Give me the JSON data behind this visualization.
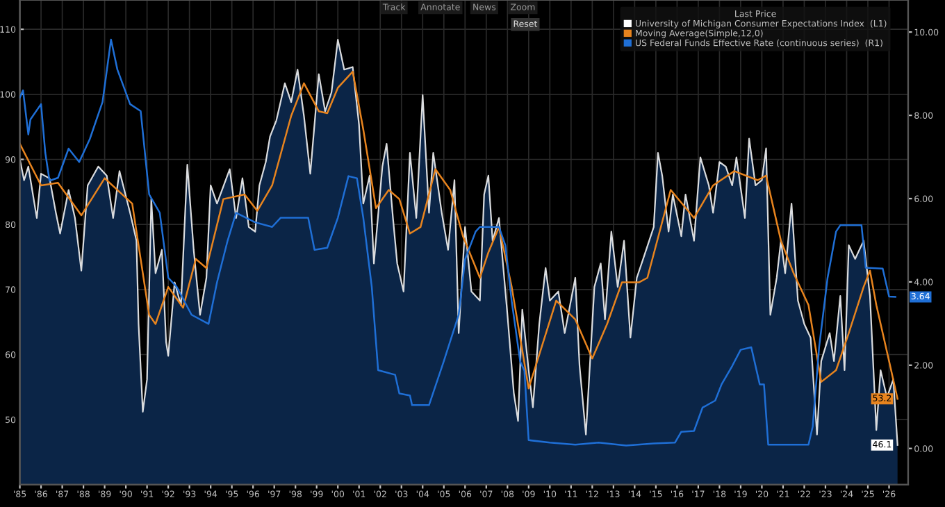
{
  "chart_data": {
    "type": "line",
    "legend_title": "Last Price",
    "annotations": [
      "Track",
      "Annotate",
      "News",
      "Zoom",
      "Reset"
    ],
    "xlim": [
      1985.0,
      2026.9
    ],
    "xticks": [
      {
        "value": 1985,
        "label": "'85"
      },
      {
        "value": 1986,
        "label": "'86"
      },
      {
        "value": 1987,
        "label": "'87"
      },
      {
        "value": 1988,
        "label": "'88"
      },
      {
        "value": 1989,
        "label": "'89"
      },
      {
        "value": 1990,
        "label": "'90"
      },
      {
        "value": 1991,
        "label": "'91"
      },
      {
        "value": 1992,
        "label": "'92"
      },
      {
        "value": 1993,
        "label": "'93"
      },
      {
        "value": 1994,
        "label": "'94"
      },
      {
        "value": 1995,
        "label": "'95"
      },
      {
        "value": 1996,
        "label": "'96"
      },
      {
        "value": 1997,
        "label": "'97"
      },
      {
        "value": 1998,
        "label": "'98"
      },
      {
        "value": 1999,
        "label": "'99"
      },
      {
        "value": 2000,
        "label": "'00"
      },
      {
        "value": 2001,
        "label": "'01"
      },
      {
        "value": 2002,
        "label": "'02"
      },
      {
        "value": 2003,
        "label": "'03"
      },
      {
        "value": 2004,
        "label": "'04"
      },
      {
        "value": 2005,
        "label": "'05"
      },
      {
        "value": 2006,
        "label": "'06"
      },
      {
        "value": 2007,
        "label": "'07"
      },
      {
        "value": 2008,
        "label": "'08"
      },
      {
        "value": 2009,
        "label": "'09"
      },
      {
        "value": 2010,
        "label": "'10"
      },
      {
        "value": 2011,
        "label": "'11"
      },
      {
        "value": 2012,
        "label": "'12"
      },
      {
        "value": 2013,
        "label": "'13"
      },
      {
        "value": 2014,
        "label": "'14"
      },
      {
        "value": 2015,
        "label": "'15"
      },
      {
        "value": 2016,
        "label": "'16"
      },
      {
        "value": 2017,
        "label": "'17"
      },
      {
        "value": 2018,
        "label": "'18"
      },
      {
        "value": 2019,
        "label": "'19"
      },
      {
        "value": 2020,
        "label": "'20"
      },
      {
        "value": 2021,
        "label": "'21"
      },
      {
        "value": 2022,
        "label": "'22"
      },
      {
        "value": 2023,
        "label": "'23"
      },
      {
        "value": 2024,
        "label": "'24"
      },
      {
        "value": 2025,
        "label": "'25"
      },
      {
        "value": 2026,
        "label": "'26"
      }
    ],
    "ylim": [
      40,
      114.5
    ],
    "yticks": [
      50,
      60,
      70,
      80,
      90,
      100,
      110
    ],
    "y2lim": [
      -0.87,
      10.77
    ],
    "y2ticks": [
      {
        "value": 0,
        "label": "0.00"
      },
      {
        "value": 2,
        "label": "2.00"
      },
      {
        "value": 4,
        "label": "4.00"
      },
      {
        "value": 6,
        "label": "6.00"
      },
      {
        "value": 8,
        "label": "8.00"
      },
      {
        "value": 10,
        "label": "10.00"
      }
    ],
    "grid": true,
    "legend": "top right",
    "series": [
      {
        "name": "University of Michigan Consumer Expectations Index  (L1)",
        "type": "area",
        "color": "#ffffff",
        "x": [
          1985.0,
          1985.2,
          1985.4,
          1985.8,
          1986.0,
          1986.4,
          1986.7,
          1986.9,
          1987.3,
          1987.6,
          1987.9,
          1988.2,
          1988.7,
          1989.1,
          1989.4,
          1989.7,
          1990.2,
          1990.5,
          1990.6,
          1990.8,
          1991.0,
          1991.2,
          1991.4,
          1991.7,
          1991.9,
          1992.0,
          1992.3,
          1992.6,
          1992.9,
          1993.2,
          1993.5,
          1993.8,
          1994.0,
          1994.3,
          1994.9,
          1995.2,
          1995.5,
          1995.8,
          1996.1,
          1996.3,
          1996.6,
          1996.8,
          1997.1,
          1997.5,
          1997.8,
          1998.1,
          1998.4,
          1998.7,
          1999.1,
          1999.4,
          1999.7,
          2000.0,
          2000.3,
          2000.7,
          2001.0,
          2001.2,
          2001.5,
          2001.7,
          2002.1,
          2002.3,
          2002.6,
          2002.8,
          2003.1,
          2003.4,
          2003.7,
          2004.0,
          2004.3,
          2004.5,
          2004.9,
          2005.2,
          2005.5,
          2005.7,
          2006.0,
          2006.3,
          2006.7,
          2006.9,
          2007.1,
          2007.3,
          2007.6,
          2008.0,
          2008.3,
          2008.5,
          2008.7,
          2009.0,
          2009.2,
          2009.5,
          2009.8,
          2010.0,
          2010.4,
          2010.7,
          2011.2,
          2011.4,
          2011.7,
          2012.1,
          2012.4,
          2012.6,
          2012.9,
          2013.2,
          2013.5,
          2013.8,
          2014.1,
          2014.4,
          2014.9,
          2015.1,
          2015.3,
          2015.6,
          2015.8,
          2016.2,
          2016.4,
          2016.8,
          2017.1,
          2017.5,
          2017.7,
          2018.0,
          2018.3,
          2018.6,
          2018.8,
          2019.2,
          2019.4,
          2019.7,
          2020.0,
          2020.2,
          2020.4,
          2020.7,
          2020.9,
          2021.1,
          2021.4,
          2021.7,
          2022.0,
          2022.3,
          2022.6,
          2022.8,
          2023.2,
          2023.4,
          2023.7,
          2023.9,
          2024.1,
          2024.4,
          2024.8,
          2025.1,
          2025.4,
          2025.6,
          2025.9,
          2026.2,
          2026.4
        ],
        "values": [
          90,
          86.8,
          88.9,
          81,
          87.8,
          87.1,
          81.8,
          78.6,
          85.3,
          81,
          72.9,
          86,
          88.9,
          87.5,
          81,
          88.2,
          81.8,
          77.5,
          64.7,
          51.2,
          56.2,
          83.9,
          72.5,
          76.1,
          61.9,
          59.8,
          71.1,
          67.6,
          89.2,
          76.1,
          66.1,
          71.8,
          86,
          83.2,
          88.5,
          81,
          87.1,
          79.6,
          78.9,
          86,
          89.6,
          93.5,
          96,
          101.7,
          98.8,
          103.8,
          96.7,
          87.8,
          103.1,
          97.4,
          100.3,
          108.4,
          103.8,
          104.2,
          95.3,
          83.2,
          87.5,
          74,
          88.9,
          92.4,
          81,
          74,
          69.7,
          91,
          81,
          99.9,
          81.8,
          91,
          81.8,
          76.1,
          86.8,
          63.3,
          79.6,
          69.7,
          68.3,
          84.6,
          87.5,
          77.5,
          81,
          66.1,
          54.1,
          49.8,
          66.9,
          57.6,
          51.9,
          64.7,
          73.3,
          68.3,
          69.7,
          63.3,
          71.8,
          58.3,
          47.7,
          70.4,
          74,
          65.4,
          78.9,
          70.4,
          77.5,
          62.6,
          71.8,
          74.7,
          79.6,
          91,
          87.5,
          78.9,
          84.6,
          78.2,
          84.6,
          77.5,
          90.3,
          86,
          81.8,
          89.6,
          88.9,
          86,
          90.3,
          81,
          93.2,
          86,
          86.8,
          91.7,
          66.1,
          71.8,
          77.5,
          72.5,
          83.2,
          68.3,
          64.7,
          62.6,
          47.7,
          59,
          63.3,
          59,
          69,
          57.6,
          76.8,
          74.7,
          77.5,
          69,
          48.4,
          57.6,
          53.4,
          56.2,
          46.1
        ],
        "value_labels": [
          null,
          null,
          null,
          null,
          null,
          null,
          null,
          null,
          null,
          null,
          null,
          null,
          null,
          null,
          null,
          null,
          null,
          null,
          null,
          null,
          null,
          null,
          null,
          null,
          null,
          null,
          null,
          null,
          null,
          null,
          null,
          null,
          null,
          null,
          null,
          null,
          null,
          null,
          null,
          null,
          null,
          null,
          null,
          null,
          null,
          null,
          null,
          null,
          null,
          null,
          null,
          null,
          null,
          null,
          null,
          null,
          null,
          null,
          null,
          null,
          null,
          null,
          null,
          null,
          null,
          null,
          null,
          null,
          null,
          null,
          null,
          null,
          null,
          null,
          null,
          null,
          null,
          null,
          null,
          null,
          null,
          null,
          null,
          null,
          null,
          null,
          null,
          null,
          null,
          null,
          null,
          null,
          null,
          null,
          null,
          null,
          null,
          null,
          null,
          null,
          null,
          null,
          null,
          null,
          null,
          null,
          null,
          null,
          null,
          null,
          null,
          null,
          null,
          null,
          null,
          null,
          null,
          null,
          null,
          null,
          null,
          null,
          null,
          null,
          null,
          null,
          null,
          null,
          null,
          null,
          null,
          null,
          null,
          null,
          null,
          null,
          null,
          null,
          null,
          null,
          null,
          null,
          null,
          null,
          "46.1"
        ]
      },
      {
        "name": "Moving Average(Simple,12,0)",
        "color": "#e8841e",
        "x": [
          1985.0,
          1986.0,
          1986.8,
          1987.9,
          1989.0,
          1990.3,
          1991.1,
          1991.4,
          1992.0,
          1992.7,
          1993.3,
          1993.8,
          1994.6,
          1995.6,
          1996.2,
          1996.9,
          1997.8,
          1998.4,
          1999.1,
          1999.5,
          2000.0,
          2000.7,
          2001.2,
          2001.8,
          2002.4,
          2002.9,
          2003.4,
          2003.9,
          2004.6,
          2005.3,
          2005.9,
          2006.7,
          2007.1,
          2007.6,
          2008.2,
          2009.0,
          2010.3,
          2011.2,
          2012.0,
          2012.7,
          2013.4,
          2014.2,
          2014.6,
          2015.7,
          2016.8,
          2017.7,
          2018.7,
          2019.8,
          2020.2,
          2020.9,
          2021.5,
          2022.2,
          2022.8,
          2023.5,
          2024.1,
          2024.8,
          2025.1,
          2025.4,
          2026.0,
          2026.4
        ],
        "values": [
          92.4,
          86,
          86.4,
          81.4,
          87.1,
          83.2,
          66.1,
          64.7,
          70.4,
          67.2,
          74.7,
          73.3,
          83.9,
          84.6,
          82.1,
          86,
          96.7,
          101.7,
          97.4,
          97.1,
          101,
          103.5,
          94.6,
          82.5,
          85.3,
          83.9,
          78.6,
          79.6,
          88.5,
          85.3,
          78.2,
          71.8,
          75.7,
          79.6,
          70.4,
          54.8,
          68.3,
          65.4,
          59.4,
          64.7,
          71.1,
          71.1,
          71.8,
          85.3,
          81,
          86,
          88.2,
          86.8,
          87.5,
          77.5,
          72.5,
          67.6,
          55.8,
          57.6,
          63.3,
          70.4,
          72.9,
          67.6,
          59,
          53.2
        ],
        "value_labels": [
          null,
          null,
          null,
          null,
          null,
          null,
          null,
          null,
          null,
          null,
          null,
          null,
          null,
          null,
          null,
          null,
          null,
          null,
          null,
          null,
          null,
          null,
          null,
          null,
          null,
          null,
          null,
          null,
          null,
          null,
          null,
          null,
          null,
          null,
          null,
          null,
          null,
          null,
          null,
          null,
          null,
          null,
          null,
          null,
          null,
          null,
          null,
          null,
          null,
          null,
          null,
          null,
          null,
          null,
          null,
          null,
          null,
          null,
          null,
          "53.2"
        ]
      },
      {
        "name": "US Federal Funds Effective Rate (continuous series)  (R1)",
        "axis": "y2",
        "color": "#1f6fd6",
        "x": [
          1985.0,
          1985.15,
          1985.4,
          1985.5,
          1986.0,
          1986.2,
          1986.4,
          1986.8,
          1987.3,
          1987.8,
          1988.3,
          1988.9,
          1989.3,
          1989.6,
          1990.2,
          1990.7,
          1991.1,
          1991.6,
          1992.0,
          1992.4,
          1993.1,
          1993.9,
          1994.3,
          1994.8,
          1995.2,
          1996.1,
          1996.9,
          1997.3,
          1998.6,
          1998.9,
          1999.5,
          2000.0,
          2000.5,
          2000.9,
          2001.2,
          2001.6,
          2001.9,
          2002.7,
          2002.9,
          2003.4,
          2003.5,
          2004.3,
          2005.0,
          2005.7,
          2006.0,
          2006.5,
          2006.7,
          2007.6,
          2007.9,
          2008.2,
          2008.6,
          2008.8,
          2009.0,
          2010.0,
          2011.2,
          2012.3,
          2013.6,
          2014.9,
          2015.9,
          2016.2,
          2016.8,
          2017.2,
          2017.8,
          2018.1,
          2018.6,
          2019.0,
          2019.5,
          2019.9,
          2020.1,
          2020.3,
          2022.2,
          2022.4,
          2022.7,
          2023.1,
          2023.5,
          2023.7,
          2024.7,
          2024.9,
          2025.7,
          2026.0,
          2026.3
        ],
        "values": [
          8.43,
          8.6,
          7.54,
          7.9,
          8.27,
          7.1,
          6.43,
          6.5,
          7.2,
          6.88,
          7.43,
          8.32,
          9.82,
          9.1,
          8.27,
          8.1,
          6.1,
          5.66,
          4.1,
          3.88,
          3.21,
          2.99,
          3.99,
          4.99,
          5.66,
          5.43,
          5.32,
          5.54,
          5.54,
          4.77,
          4.82,
          5.54,
          6.54,
          6.49,
          5.54,
          3.88,
          1.88,
          1.77,
          1.32,
          1.27,
          1.04,
          1.04,
          2.1,
          3.21,
          4.54,
          5.21,
          5.32,
          5.32,
          4.88,
          3.54,
          2.09,
          1.87,
          0.2,
          0.14,
          0.09,
          0.14,
          0.07,
          0.12,
          0.14,
          0.4,
          0.42,
          0.98,
          1.15,
          1.54,
          1.98,
          2.37,
          2.43,
          1.54,
          1.54,
          0.09,
          0.09,
          0.53,
          2.43,
          4.1,
          5.21,
          5.36,
          5.36,
          4.34,
          4.32,
          3.65,
          3.64
        ],
        "value_labels": [
          null,
          null,
          null,
          null,
          null,
          null,
          null,
          null,
          null,
          null,
          null,
          null,
          null,
          null,
          null,
          null,
          null,
          null,
          null,
          null,
          null,
          null,
          null,
          null,
          null,
          null,
          null,
          null,
          null,
          null,
          null,
          null,
          null,
          null,
          null,
          null,
          null,
          null,
          null,
          null,
          null,
          null,
          null,
          null,
          null,
          null,
          null,
          null,
          null,
          null,
          null,
          null,
          null,
          null,
          null,
          null,
          null,
          null,
          null,
          null,
          null,
          null,
          null,
          null,
          null,
          null,
          null,
          null,
          null,
          null,
          null,
          null,
          null,
          null,
          null,
          null,
          null,
          null,
          null,
          null,
          "3.64"
        ]
      }
    ]
  }
}
